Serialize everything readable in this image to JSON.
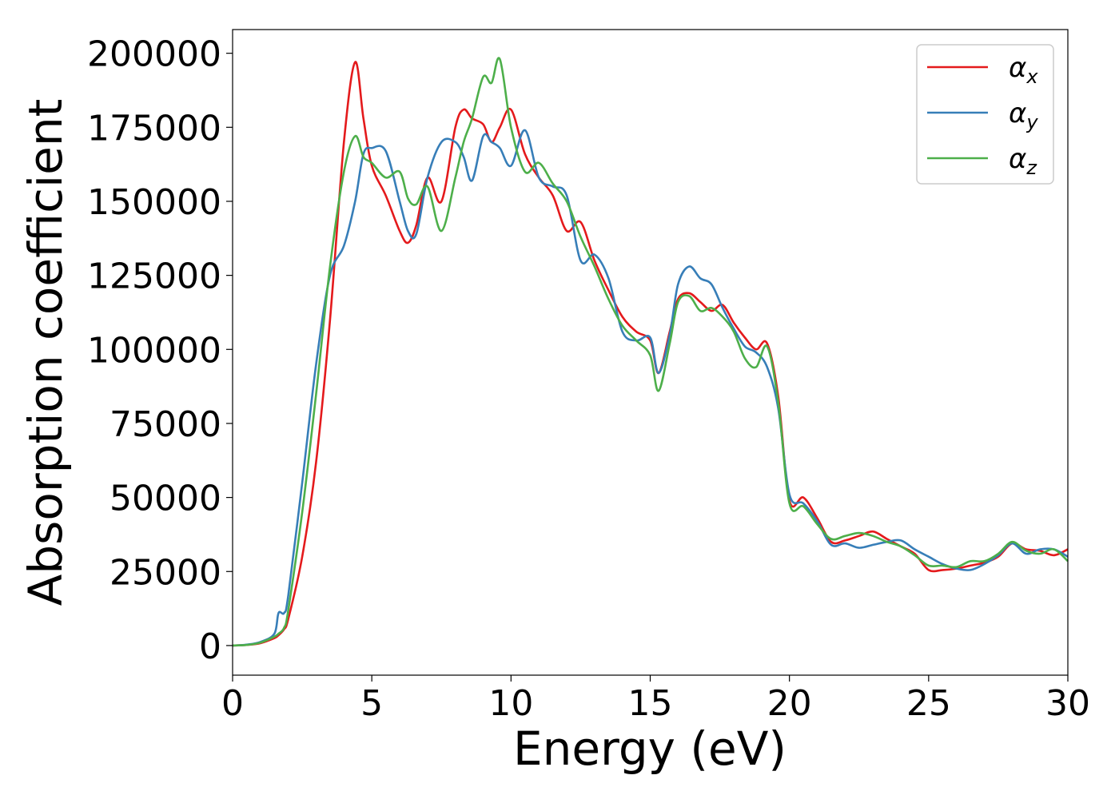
{
  "chart_data": {
    "type": "line",
    "xlabel": "Energy (eV)",
    "ylabel": "Absorption coefficient",
    "xlim": [
      0,
      30
    ],
    "ylim": [
      -10000,
      208000
    ],
    "x_ticks": [
      0,
      5,
      10,
      15,
      20,
      25,
      30
    ],
    "y_ticks": [
      0,
      25000,
      50000,
      75000,
      100000,
      125000,
      150000,
      175000,
      200000
    ],
    "x_tick_labels": [
      "0",
      "5",
      "10",
      "15",
      "20",
      "25",
      "30"
    ],
    "y_tick_labels": [
      "0",
      "25000",
      "50000",
      "75000",
      "100000",
      "125000",
      "150000",
      "175000",
      "200000"
    ],
    "grid": false,
    "legend_position": "top-right",
    "x": [
      0,
      0.5,
      1,
      1.5,
      1.65,
      1.85,
      2,
      2.5,
      3,
      3.5,
      4,
      4.4,
      4.7,
      5,
      5.5,
      6,
      6.3,
      6.6,
      7,
      7.5,
      8,
      8.3,
      8.6,
      9,
      9.3,
      9.6,
      10,
      10.5,
      11,
      11.5,
      12,
      12.5,
      13,
      13.5,
      14,
      14.5,
      15,
      15.3,
      15.7,
      16,
      16.4,
      16.8,
      17.2,
      17.6,
      18,
      18.4,
      18.8,
      19.2,
      19.6,
      20,
      20.5,
      21,
      21.5,
      22,
      22.5,
      23,
      23.5,
      24,
      24.5,
      25,
      25.5,
      26,
      26.5,
      27,
      27.5,
      28,
      28.5,
      29,
      29.5,
      30
    ],
    "series": [
      {
        "name": "α_x",
        "color": "#e41a1c",
        "values": [
          0,
          200,
          800,
          2500,
          3500,
          5500,
          9000,
          30000,
          62000,
          110000,
          170000,
          197000,
          178000,
          162000,
          152000,
          140000,
          136000,
          142000,
          158000,
          150000,
          175000,
          181000,
          178000,
          176000,
          170000,
          175000,
          181000,
          166000,
          158000,
          152000,
          140000,
          143000,
          130000,
          120000,
          111000,
          106000,
          103000,
          92000,
          106000,
          117000,
          119000,
          116000,
          113000,
          115000,
          109000,
          104000,
          100000,
          102000,
          84000,
          49000,
          50000,
          43000,
          35000,
          35500,
          37000,
          38500,
          36000,
          33500,
          31000,
          25500,
          25500,
          26000,
          27000,
          28000,
          30000,
          34500,
          32500,
          32000,
          30500,
          32500
        ]
      },
      {
        "name": "α_y",
        "color": "#377eb8",
        "values": [
          0,
          300,
          1200,
          4000,
          11000,
          11000,
          17000,
          55000,
          95000,
          125000,
          135000,
          150000,
          166000,
          168000,
          167000,
          150000,
          140000,
          139000,
          158000,
          170000,
          170000,
          165000,
          157000,
          172000,
          170000,
          168000,
          162000,
          174000,
          158000,
          155000,
          152000,
          130000,
          132000,
          124000,
          106000,
          103000,
          104000,
          92000,
          105000,
          122000,
          128000,
          124000,
          122000,
          114000,
          107000,
          101000,
          99000,
          94000,
          80000,
          51000,
          48000,
          42000,
          34000,
          34500,
          33000,
          34000,
          35000,
          35500,
          32500,
          30000,
          27500,
          26000,
          25500,
          27500,
          30500,
          34500,
          31000,
          32500,
          32500,
          30000
        ]
      },
      {
        "name": "α_z",
        "color": "#4daf4a",
        "values": [
          0,
          200,
          1000,
          3000,
          4000,
          6000,
          12000,
          45000,
          85000,
          128000,
          160000,
          172000,
          165000,
          163000,
          158000,
          160000,
          151000,
          149000,
          155000,
          140000,
          158000,
          170000,
          178000,
          192000,
          190000,
          198000,
          175000,
          160000,
          163000,
          156000,
          150000,
          138000,
          128000,
          117000,
          108000,
          103000,
          98000,
          86000,
          102000,
          116000,
          118000,
          113000,
          114000,
          111000,
          106000,
          97000,
          94000,
          101000,
          82000,
          48000,
          47000,
          41000,
          36000,
          37000,
          38000,
          37000,
          35000,
          33500,
          30500,
          27000,
          27000,
          26500,
          28500,
          28500,
          31000,
          35000,
          32000,
          31000,
          32500,
          28500
        ]
      }
    ]
  }
}
